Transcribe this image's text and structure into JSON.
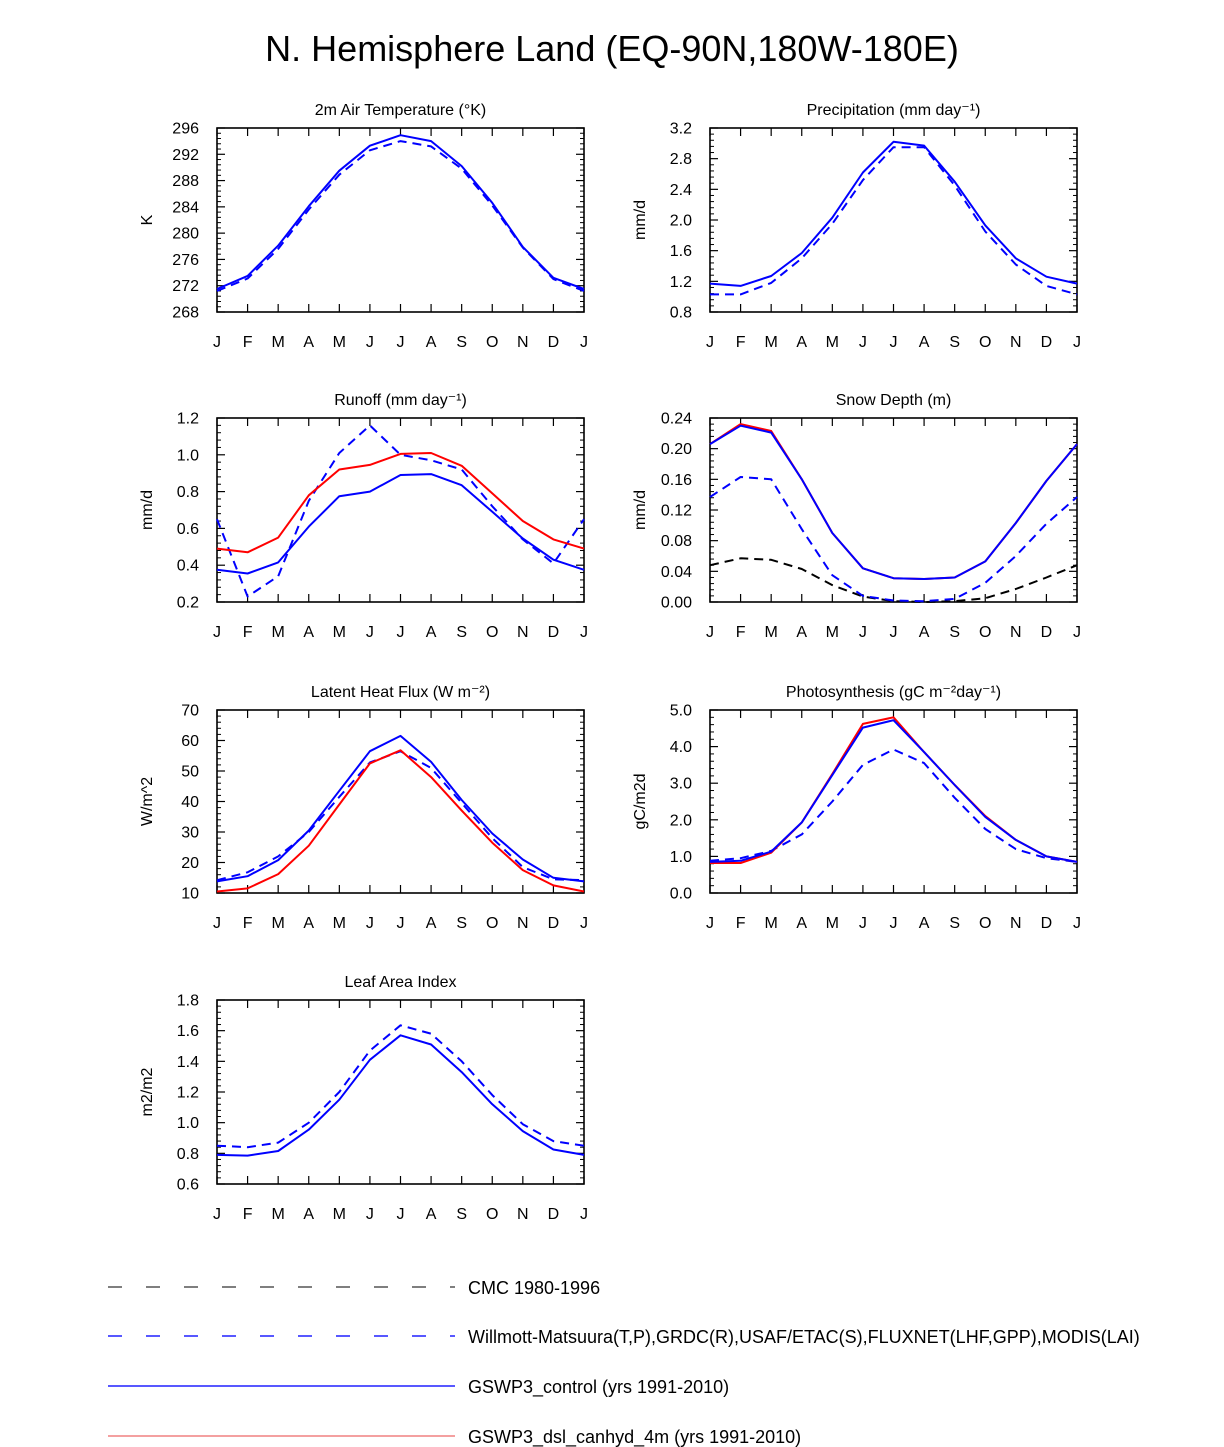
{
  "page": {
    "title": "N. Hemisphere Land (EQ-90N,180W-180E)"
  },
  "styles": {
    "blue": "#0000ff",
    "red": "#ff0000",
    "black": "#000000",
    "legend_gray": "#555555",
    "legend_blue": "#2020ff",
    "legend_red": "#f08080"
  },
  "chart_data": [
    {
      "type": "line",
      "title": "2m Air Temperature (°K)",
      "ylabel": "K",
      "ylim": [
        268,
        296
      ],
      "yticks": [
        268,
        272,
        276,
        280,
        284,
        288,
        292,
        296
      ],
      "ytick_labels": [
        "268",
        "272",
        "276",
        "280",
        "284",
        "288",
        "292",
        "296"
      ],
      "categories": [
        "J",
        "F",
        "M",
        "A",
        "M",
        "J",
        "J",
        "A",
        "S",
        "O",
        "N",
        "D",
        "J"
      ],
      "series": [
        {
          "name": "Willmott-Matsuura",
          "color": "blue",
          "dash": true,
          "values": [
            271.2,
            273.1,
            277.6,
            283.6,
            288.9,
            292.6,
            294.0,
            293.2,
            289.8,
            284.2,
            277.8,
            273.0,
            271.2
          ]
        },
        {
          "name": "GSWP3_control",
          "color": "blue",
          "dash": false,
          "values": [
            271.5,
            273.5,
            278.1,
            284.1,
            289.5,
            293.3,
            294.9,
            294.0,
            290.2,
            284.6,
            277.9,
            273.2,
            271.5
          ]
        }
      ]
    },
    {
      "type": "line",
      "title": "Precipitation (mm day⁻¹)",
      "ylabel": "mm/d",
      "ylim": [
        0.8,
        3.2
      ],
      "yticks": [
        0.8,
        1.2,
        1.6,
        2.0,
        2.4,
        2.8,
        3.2
      ],
      "ytick_labels": [
        "0.8",
        "1.2",
        "1.6",
        "2.0",
        "2.4",
        "2.8",
        "3.2"
      ],
      "categories": [
        "J",
        "F",
        "M",
        "A",
        "M",
        "J",
        "J",
        "A",
        "S",
        "O",
        "N",
        "D",
        "J"
      ],
      "series": [
        {
          "name": "Willmott-Matsuura",
          "color": "blue",
          "dash": true,
          "values": [
            1.03,
            1.03,
            1.18,
            1.5,
            1.95,
            2.52,
            2.95,
            2.95,
            2.45,
            1.85,
            1.42,
            1.14,
            1.03
          ]
        },
        {
          "name": "GSWP3_control",
          "color": "blue",
          "dash": false,
          "values": [
            1.17,
            1.14,
            1.27,
            1.57,
            2.03,
            2.62,
            3.02,
            2.97,
            2.5,
            1.93,
            1.5,
            1.26,
            1.17
          ]
        }
      ]
    },
    {
      "type": "line",
      "title": "Runoff (mm day⁻¹)",
      "ylabel": "mm/d",
      "ylim": [
        0.2,
        1.2
      ],
      "yticks": [
        0.2,
        0.4,
        0.6,
        0.8,
        1.0,
        1.2
      ],
      "ytick_labels": [
        "0.2",
        "0.4",
        "0.6",
        "0.8",
        "1.0",
        "1.2"
      ],
      "categories": [
        "J",
        "F",
        "M",
        "A",
        "M",
        "J",
        "J",
        "A",
        "S",
        "O",
        "N",
        "D",
        "J"
      ],
      "series": [
        {
          "name": "GRDC",
          "color": "blue",
          "dash": true,
          "values": [
            0.65,
            0.23,
            0.34,
            0.75,
            1.01,
            1.16,
            1.0,
            0.97,
            0.92,
            0.72,
            0.54,
            0.41,
            0.65
          ]
        },
        {
          "name": "GSWP3_control",
          "color": "blue",
          "dash": false,
          "values": [
            0.375,
            0.355,
            0.415,
            0.61,
            0.775,
            0.8,
            0.89,
            0.895,
            0.835,
            0.69,
            0.545,
            0.43,
            0.375
          ]
        },
        {
          "name": "GSWP3_dsl_canhyd_4m",
          "color": "red",
          "dash": false,
          "values": [
            0.49,
            0.47,
            0.55,
            0.78,
            0.92,
            0.945,
            1.005,
            1.01,
            0.94,
            0.79,
            0.64,
            0.54,
            0.49
          ]
        }
      ]
    },
    {
      "type": "line",
      "title": "Snow Depth (m)",
      "ylabel": "mm/d",
      "ylim": [
        0.0,
        0.24
      ],
      "yticks": [
        0.0,
        0.04,
        0.08,
        0.12,
        0.16,
        0.2,
        0.24
      ],
      "ytick_labels": [
        "0.00",
        "0.04",
        "0.08",
        "0.12",
        "0.16",
        "0.20",
        "0.24"
      ],
      "categories": [
        "J",
        "F",
        "M",
        "A",
        "M",
        "J",
        "J",
        "A",
        "S",
        "O",
        "N",
        "D",
        "J"
      ],
      "series": [
        {
          "name": "CMC 1980-1996",
          "color": "black",
          "dash": true,
          "values": [
            0.048,
            0.057,
            0.055,
            0.043,
            0.022,
            0.007,
            0.001,
            0.0,
            0.001,
            0.005,
            0.017,
            0.032,
            0.048
          ]
        },
        {
          "name": "USAF/ETAC",
          "color": "blue",
          "dash": true,
          "values": [
            0.137,
            0.163,
            0.16,
            0.095,
            0.035,
            0.008,
            0.002,
            0.001,
            0.004,
            0.025,
            0.06,
            0.102,
            0.137
          ]
        },
        {
          "name": "GSWP3_dsl_canhyd_4m",
          "color": "red",
          "dash": false,
          "values": [
            0.206,
            0.232,
            0.223,
            0.16,
            0.09,
            0.044,
            0.031,
            0.03,
            0.032,
            0.053,
            0.103,
            0.158,
            0.206
          ]
        },
        {
          "name": "GSWP3_control",
          "color": "blue",
          "dash": false,
          "values": [
            0.206,
            0.23,
            0.221,
            0.16,
            0.09,
            0.044,
            0.031,
            0.03,
            0.032,
            0.053,
            0.103,
            0.158,
            0.206
          ]
        }
      ]
    },
    {
      "type": "line",
      "title": "Latent Heat Flux (W m⁻²)",
      "ylabel": "W/m^2",
      "ylim": [
        10,
        70
      ],
      "yticks": [
        10,
        20,
        30,
        40,
        50,
        60,
        70
      ],
      "ytick_labels": [
        "10",
        "20",
        "30",
        "40",
        "50",
        "60",
        "70"
      ],
      "categories": [
        "J",
        "F",
        "M",
        "A",
        "M",
        "J",
        "J",
        "A",
        "S",
        "O",
        "N",
        "D",
        "J"
      ],
      "series": [
        {
          "name": "FLUXNET",
          "color": "blue",
          "dash": true,
          "values": [
            14.2,
            16.8,
            22.0,
            30.0,
            41.5,
            52.8,
            56.5,
            51.0,
            39.5,
            28.0,
            18.5,
            14.5,
            14.2
          ]
        },
        {
          "name": "GSWP3_control",
          "color": "blue",
          "dash": false,
          "values": [
            13.8,
            15.5,
            20.8,
            30.5,
            43.5,
            56.5,
            61.5,
            53.0,
            40.5,
            29.5,
            21.0,
            15.0,
            13.8
          ]
        },
        {
          "name": "GSWP3_dsl_canhyd_4m",
          "color": "red",
          "dash": false,
          "values": [
            10.5,
            11.5,
            16.2,
            25.5,
            39.0,
            52.5,
            56.8,
            48.0,
            37.0,
            26.5,
            17.5,
            12.5,
            10.5
          ]
        }
      ]
    },
    {
      "type": "line",
      "title": "Photosynthesis (gC m⁻²day⁻¹)",
      "ylabel": "gC/m2d",
      "ylim": [
        0.0,
        5.0
      ],
      "yticks": [
        0.0,
        1.0,
        2.0,
        3.0,
        4.0,
        5.0
      ],
      "ytick_labels": [
        "0.0",
        "1.0",
        "2.0",
        "3.0",
        "4.0",
        "5.0"
      ],
      "categories": [
        "J",
        "F",
        "M",
        "A",
        "M",
        "J",
        "J",
        "A",
        "S",
        "O",
        "N",
        "D",
        "J"
      ],
      "series": [
        {
          "name": "FLUXNET",
          "color": "blue",
          "dash": true,
          "values": [
            0.88,
            0.95,
            1.15,
            1.6,
            2.5,
            3.5,
            3.92,
            3.55,
            2.6,
            1.75,
            1.2,
            0.95,
            0.85
          ]
        },
        {
          "name": "GSWP3_dsl_canhyd_4m",
          "color": "red",
          "dash": false,
          "values": [
            0.82,
            0.82,
            1.1,
            1.93,
            3.25,
            4.62,
            4.8,
            3.85,
            2.95,
            2.1,
            1.45,
            1.0,
            0.85
          ]
        },
        {
          "name": "GSWP3_control",
          "color": "blue",
          "dash": false,
          "values": [
            0.85,
            0.88,
            1.13,
            1.93,
            3.22,
            4.52,
            4.72,
            3.85,
            2.95,
            2.08,
            1.45,
            1.0,
            0.85
          ]
        }
      ]
    },
    {
      "type": "line",
      "title": "Leaf Area Index",
      "ylabel": "m2/m2",
      "ylim": [
        0.6,
        1.8
      ],
      "yticks": [
        0.6,
        0.8,
        1.0,
        1.2,
        1.4,
        1.6,
        1.8
      ],
      "ytick_labels": [
        "0.6",
        "0.8",
        "1.0",
        "1.2",
        "1.4",
        "1.6",
        "1.8"
      ],
      "categories": [
        "J",
        "F",
        "M",
        "A",
        "M",
        "J",
        "J",
        "A",
        "S",
        "O",
        "N",
        "D",
        "J"
      ],
      "series": [
        {
          "name": "MODIS",
          "color": "blue",
          "dash": true,
          "values": [
            0.85,
            0.84,
            0.87,
            1.0,
            1.2,
            1.47,
            1.635,
            1.58,
            1.4,
            1.18,
            0.99,
            0.88,
            0.85
          ]
        },
        {
          "name": "GSWP3_control",
          "color": "blue",
          "dash": false,
          "values": [
            0.79,
            0.785,
            0.815,
            0.955,
            1.15,
            1.41,
            1.57,
            1.51,
            1.33,
            1.12,
            0.945,
            0.825,
            0.79
          ]
        }
      ]
    }
  ],
  "legend": [
    {
      "label": "CMC 1980-1996",
      "color": "legend_gray",
      "dash": true
    },
    {
      "label": "Willmott-Matsuura(T,P),GRDC(R),USAF/ETAC(S),FLUXNET(LHF,GPP),MODIS(LAI)",
      "color": "legend_blue",
      "dash": true
    },
    {
      "label": "GSWP3_control (yrs 1991-2010)",
      "color": "legend_blue",
      "dash": false
    },
    {
      "label": "GSWP3_dsl_canhyd_4m (yrs 1991-2010)",
      "color": "legend_red",
      "dash": false
    }
  ]
}
